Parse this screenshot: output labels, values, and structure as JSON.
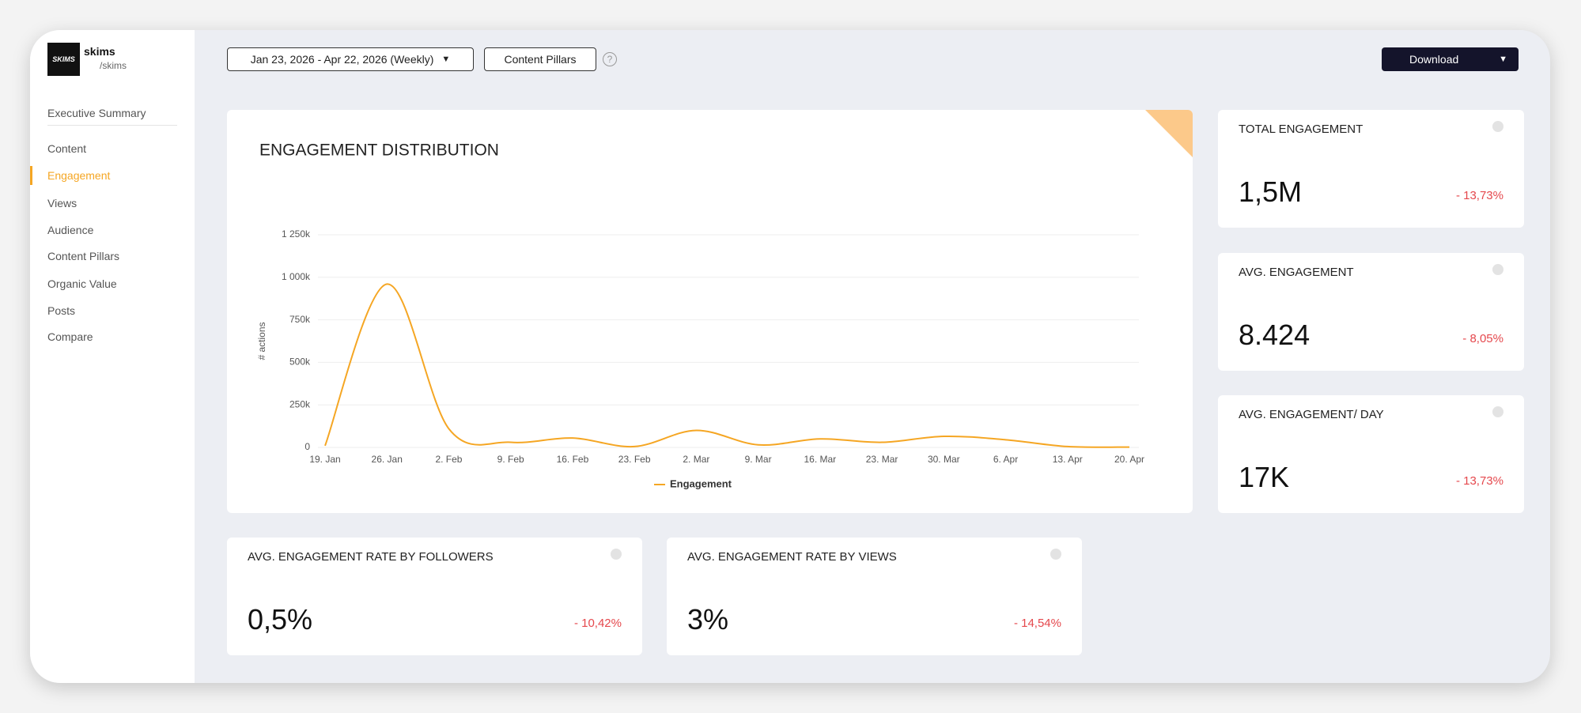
{
  "sidebar": {
    "account": {
      "name": "skims",
      "handle": "/skims",
      "logo": "SKIMS"
    },
    "nav": [
      "Executive Summary",
      "Content",
      "Engagement",
      "Views",
      "Audience",
      "Content Pillars",
      "Organic Value",
      "Posts",
      "Compare"
    ],
    "active": 2
  },
  "toolbar": {
    "date_range": "Jan 23, 2026 - Apr 22, 2026 (Weekly)",
    "filter": "Content Pillars",
    "download": "Download"
  },
  "kpis": [
    {
      "title": "TOTAL ENGAGEMENT",
      "value": "1,5M",
      "change": "- 13,73%"
    },
    {
      "title": "AVG. ENGAGEMENT",
      "value": "8.424",
      "change": "- 8,05%"
    },
    {
      "title": "AVG. ENGAGEMENT/ DAY",
      "value": "17K",
      "change": "- 13,73%"
    },
    {
      "title": "AVG. ENGAGEMENT RATE BY FOLLOWERS",
      "value": "0,5%",
      "change": "- 10,42%"
    },
    {
      "title": "AVG. ENGAGEMENT RATE BY VIEWS",
      "value": "3%",
      "change": "- 14,54%"
    }
  ],
  "chart_data": {
    "type": "line",
    "title": "ENGAGEMENT DISTRIBUTION",
    "y_label": "# actions",
    "categories": [
      "19. Jan",
      "26. Jan",
      "2. Feb",
      "9. Feb",
      "16. Feb",
      "23. Feb",
      "2. Mar",
      "9. Mar",
      "16. Mar",
      "23. Mar",
      "30. Mar",
      "6. Apr",
      "13. Apr",
      "20. Apr"
    ],
    "series": [
      {
        "name": "Engagement",
        "color": "#f5a623",
        "values": [
          10000,
          960000,
          110000,
          30000,
          55000,
          5000,
          100000,
          15000,
          50000,
          30000,
          65000,
          45000,
          5000,
          2000
        ]
      }
    ],
    "ylim": [
      0,
      1250000
    ],
    "yticks": [
      {
        "value": 0,
        "label": "0"
      },
      {
        "value": 250000,
        "label": "250k"
      },
      {
        "value": 500000,
        "label": "500k"
      },
      {
        "value": 750000,
        "label": "750k"
      },
      {
        "value": 1000000,
        "label": "1 000k"
      },
      {
        "value": 1250000,
        "label": "1 250k"
      }
    ],
    "grid": true
  }
}
